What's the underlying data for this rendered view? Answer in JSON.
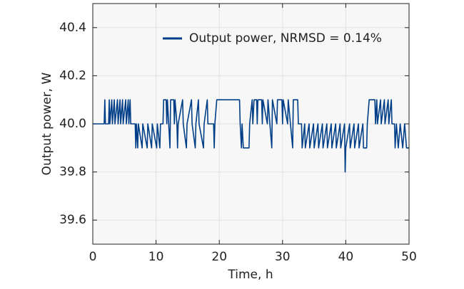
{
  "chart_data": {
    "type": "line",
    "xlabel": "Time, h",
    "ylabel": "Output power, W",
    "xlim": [
      0,
      50
    ],
    "ylim": [
      39.5,
      40.5
    ],
    "xticks": [
      0,
      10,
      20,
      30,
      40,
      50
    ],
    "yticks": [
      39.6,
      39.8,
      {
        "value": 40,
        "label": "40.0"
      },
      40.2,
      40.4
    ],
    "grid": true,
    "legend": "upper right",
    "series": [
      {
        "name": "Output power, NRMSD = 0.14%",
        "color": "#003f87",
        "x": [
          0,
          1.8,
          1.9,
          2.0,
          2.5,
          2.6,
          2.7,
          3.0,
          3.1,
          3.4,
          3.5,
          3.9,
          4.0,
          4.3,
          4.4,
          4.7,
          4.8,
          5.2,
          5.3,
          5.6,
          5.7,
          5.9,
          6.0,
          6.7,
          6.8,
          6.9,
          7.1,
          7.2,
          7.8,
          7.9,
          8.6,
          8.7,
          9.3,
          9.4,
          10.1,
          10.2,
          10.6,
          10.7,
          11.1,
          11.2,
          11.6,
          11.7,
          11.8,
          12.2,
          12.3,
          12.8,
          12.9,
          13.0,
          13.3,
          13.4,
          13.5,
          14.2,
          14.3,
          14.8,
          14.9,
          15.6,
          15.7,
          16.2,
          16.3,
          16.7,
          16.8,
          17.5,
          17.6,
          18.1,
          18.2,
          19.1,
          19.2,
          19.3,
          19.6,
          23.2,
          23.3,
          23.5,
          23.6,
          23.8,
          24.7,
          24.8,
          25.2,
          25.3,
          25.5,
          25.9,
          26.0,
          26.1,
          26.7,
          26.8,
          26.9,
          27.6,
          27.7,
          28.3,
          28.4,
          29.1,
          29.2,
          29.9,
          30.0,
          30.1,
          30.8,
          30.9,
          31.6,
          31.7,
          32.4,
          32.5,
          33.0,
          33.1,
          33.5,
          33.6,
          34.2,
          34.3,
          34.9,
          35.0,
          35.6,
          35.7,
          36.3,
          36.4,
          37.0,
          37.1,
          37.7,
          37.8,
          38.4,
          38.5,
          39.1,
          39.2,
          39.8,
          39.9,
          40.0,
          40.6,
          40.7,
          41.3,
          41.4,
          42.0,
          42.1,
          42.7,
          42.8,
          43.3,
          43.4,
          43.7,
          44.6,
          44.7,
          44.9,
          45.0,
          45.5,
          45.6,
          46.1,
          46.2,
          46.7,
          46.8,
          47.2,
          47.3,
          47.7,
          47.8,
          48.0,
          48.3,
          48.6,
          49.0,
          49.3,
          49.6,
          50.0
        ],
        "values": [
          40,
          40,
          40.1,
          40,
          40,
          40.1,
          40,
          40.1,
          40,
          40.1,
          40,
          40.1,
          40,
          40.1,
          40,
          40.1,
          40,
          40.1,
          40,
          40.1,
          40,
          40.1,
          40,
          40,
          39.9,
          40,
          39.9,
          40,
          39.9,
          40,
          39.9,
          40,
          39.9,
          40,
          39.9,
          40,
          39.9,
          40,
          40,
          40.1,
          40.1,
          40,
          40.1,
          39.9,
          40.1,
          40.1,
          40,
          40.1,
          40,
          39.9,
          40,
          40.1,
          40,
          39.9,
          40,
          40.1,
          40,
          39.9,
          40,
          40.1,
          40,
          39.9,
          40,
          40.1,
          40,
          40,
          39.9,
          40,
          40.1,
          40.1,
          40,
          39.9,
          40,
          39.9,
          39.9,
          40,
          40.1,
          40,
          40.1,
          40.1,
          40,
          40.1,
          40.1,
          40,
          40.1,
          40,
          40.1,
          39.9,
          40.1,
          40,
          40.1,
          40.1,
          40,
          40.1,
          40,
          40.1,
          39.9,
          40.1,
          40.1,
          40,
          40,
          39.9,
          40,
          39.9,
          40,
          39.9,
          40,
          39.9,
          40,
          39.9,
          40,
          39.9,
          40,
          39.9,
          40,
          39.9,
          40,
          39.9,
          40,
          39.9,
          40,
          39.8,
          39.9,
          40,
          39.9,
          40,
          39.9,
          40,
          39.9,
          40,
          39.9,
          39.9,
          40,
          40.1,
          40.1,
          40,
          40.1,
          40,
          40.1,
          40,
          40.1,
          40,
          40.1,
          40,
          40.1,
          40,
          40,
          39.9,
          40,
          39.9,
          40,
          39.9,
          40,
          39.9,
          39.9
        ]
      }
    ]
  }
}
